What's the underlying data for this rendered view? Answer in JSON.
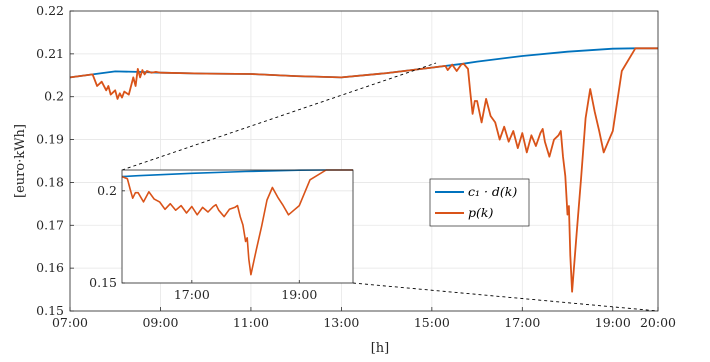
{
  "chart_data": {
    "type": "line",
    "xlabel": "[h]",
    "ylabel": "[euro·kWh]",
    "xlim": [
      7,
      20
    ],
    "ylim": [
      0.15,
      0.22
    ],
    "x_ticks": [
      "07:00",
      "09:00",
      "11:00",
      "13:00",
      "15:00",
      "17:00",
      "19:00",
      "20:00"
    ],
    "y_ticks": [
      "0.15",
      "0.16",
      "0.17",
      "0.18",
      "0.19",
      "0.2",
      "0.21",
      "0.22"
    ],
    "grid": true,
    "legend": {
      "placement": "center-right",
      "entries": [
        "c₁ · d(k)",
        "p(k)"
      ]
    },
    "colors": {
      "c1d": "#0072BD",
      "p": "#D95319",
      "grid": "#e6e6e6",
      "axis": "#262626"
    },
    "series": [
      {
        "name": "c₁ · d(k)",
        "x": [
          7.0,
          7.5,
          8.0,
          8.5,
          9.0,
          10.0,
          11.0,
          12.0,
          13.0,
          14.0,
          15.0,
          15.7,
          16.0,
          17.0,
          18.0,
          19.0,
          19.5,
          20.0
        ],
        "y": [
          0.2045,
          0.2052,
          0.2059,
          0.2058,
          0.2056,
          0.2054,
          0.2053,
          0.2048,
          0.2045,
          0.2055,
          0.2068,
          0.2077,
          0.2082,
          0.2095,
          0.2105,
          0.2112,
          0.2113,
          0.2113
        ]
      },
      {
        "name": "p(k)",
        "x": [
          7.0,
          7.5,
          7.6,
          7.7,
          7.8,
          7.85,
          7.9,
          8.0,
          8.05,
          8.1,
          8.15,
          8.2,
          8.3,
          8.4,
          8.45,
          8.5,
          8.55,
          8.6,
          8.65,
          8.7,
          8.8,
          8.9,
          9.0,
          10.0,
          11.0,
          12.0,
          13.0,
          14.0,
          15.0,
          15.3,
          15.35,
          15.45,
          15.55,
          15.65,
          15.7,
          15.8,
          15.85,
          15.9,
          15.95,
          16.0,
          16.1,
          16.2,
          16.3,
          16.4,
          16.5,
          16.6,
          16.7,
          16.8,
          16.9,
          17.0,
          17.1,
          17.2,
          17.3,
          17.4,
          17.45,
          17.5,
          17.6,
          17.7,
          17.8,
          17.85,
          17.9,
          17.95,
          18.0,
          18.03,
          18.06,
          18.1,
          18.2,
          18.3,
          18.4,
          18.5,
          18.6,
          18.7,
          18.8,
          18.9,
          19.0,
          19.2,
          19.5,
          20.0
        ],
        "y": [
          0.2045,
          0.2052,
          0.2025,
          0.2035,
          0.2015,
          0.2025,
          0.2005,
          0.2015,
          0.1995,
          0.2008,
          0.1998,
          0.2012,
          0.2005,
          0.2045,
          0.2025,
          0.2065,
          0.2045,
          0.2062,
          0.2052,
          0.206,
          0.2056,
          0.2058,
          0.2056,
          0.2054,
          0.2053,
          0.2048,
          0.2045,
          0.2055,
          0.2068,
          0.2072,
          0.2062,
          0.2075,
          0.206,
          0.2075,
          0.2077,
          0.2065,
          0.201,
          0.196,
          0.199,
          0.199,
          0.194,
          0.1995,
          0.1955,
          0.194,
          0.19,
          0.193,
          0.1895,
          0.192,
          0.188,
          0.1915,
          0.187,
          0.191,
          0.1885,
          0.1915,
          0.1925,
          0.1895,
          0.186,
          0.19,
          0.191,
          0.192,
          0.186,
          0.1815,
          0.1725,
          0.1745,
          0.163,
          0.1545,
          0.168,
          0.181,
          0.195,
          0.2018,
          0.1965,
          0.192,
          0.187,
          0.1895,
          0.192,
          0.206,
          0.2113,
          0.2113
        ]
      }
    ],
    "inset": {
      "x_ticks": [
        "17:00",
        "19:00"
      ],
      "y_ticks": [
        "0.15",
        "0.2"
      ],
      "xlim": [
        15.7,
        20.0
      ],
      "ylim": [
        0.15,
        0.2113
      ]
    }
  }
}
